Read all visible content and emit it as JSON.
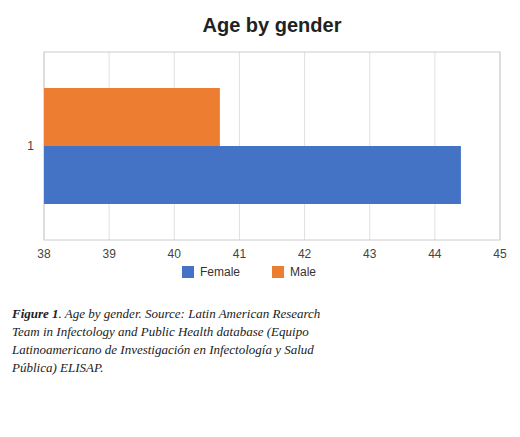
{
  "chart_data": {
    "type": "bar",
    "orientation": "horizontal",
    "title": "Age by gender",
    "categories": [
      "1"
    ],
    "series": [
      {
        "name": "Female",
        "color": "#4472C4",
        "values": [
          44.4
        ]
      },
      {
        "name": "Male",
        "color": "#ED7D31",
        "values": [
          40.7
        ]
      }
    ],
    "xlim": [
      38,
      45
    ],
    "xticks": [
      38,
      39,
      40,
      41,
      42,
      43,
      44,
      45
    ],
    "grid": true,
    "legend": "bottom",
    "annotations": [
      "Figure 1",
      ". Age by gender. Source: Latin American Research\nTeam in Infectology and Public Health database (Equipo\nLatinoamericano de Investigación en Infectología y Salud\nPública) ELISAP."
    ]
  }
}
